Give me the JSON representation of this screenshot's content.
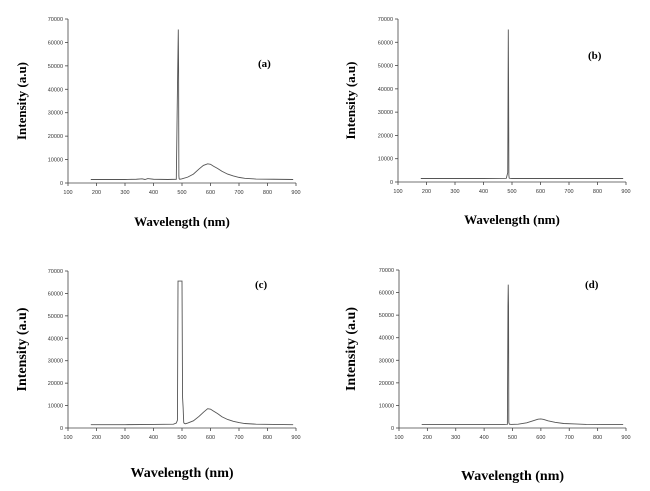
{
  "chart_data": [
    {
      "type": "line",
      "panel_label": "(a)",
      "xlabel": "Wavelength (nm)",
      "ylabel": "Intensity (a.u)",
      "xlim": [
        100,
        900
      ],
      "ylim": [
        0,
        70000
      ],
      "xticks": [
        "100",
        "200",
        "300",
        "400",
        "500",
        "600",
        "700",
        "800",
        "900"
      ],
      "yticks": [
        "0",
        "10000",
        "20000",
        "30000",
        "40000",
        "50000",
        "60000",
        "70000"
      ],
      "grid": false,
      "series": [
        {
          "x": [
            180,
            300,
            340,
            360,
            370,
            380,
            400,
            450,
            480,
            485,
            487,
            488,
            489,
            490,
            492,
            496,
            500,
            520,
            540,
            560,
            575,
            590,
            600,
            610,
            625,
            640,
            660,
            680,
            700,
            720,
            760,
            820,
            890
          ],
          "values": [
            1500,
            1500,
            1600,
            1800,
            1500,
            1900,
            1600,
            1500,
            1600,
            49000,
            65500,
            49000,
            3000,
            1800,
            1600,
            1700,
            1800,
            2500,
            3800,
            6000,
            7500,
            8200,
            8000,
            7200,
            6200,
            5000,
            3800,
            3000,
            2400,
            2000,
            1700,
            1600,
            1500
          ]
        }
      ]
    },
    {
      "type": "line",
      "panel_label": "(b)",
      "xlabel": "Wavelength (nm)",
      "ylabel": "Intensity (a.u)",
      "xlim": [
        100,
        900
      ],
      "ylim": [
        0,
        70000
      ],
      "xticks": [
        "100",
        "200",
        "300",
        "400",
        "500",
        "600",
        "700",
        "800",
        "900"
      ],
      "yticks": [
        "0",
        "10000",
        "20000",
        "30000",
        "40000",
        "50000",
        "60000",
        "70000"
      ],
      "grid": false,
      "series": [
        {
          "x": [
            180,
            300,
            400,
            480,
            485,
            487,
            488,
            489,
            490,
            492,
            500,
            600,
            700,
            800,
            890
          ],
          "values": [
            1500,
            1500,
            1500,
            1600,
            4000,
            65500,
            40000,
            3000,
            1700,
            1600,
            1500,
            1500,
            1500,
            1500,
            1500
          ]
        }
      ]
    },
    {
      "type": "line",
      "panel_label": "(c)",
      "xlabel": "Wavelength (nm)",
      "ylabel": "Intensity (a.u)",
      "xlim": [
        100,
        900
      ],
      "ylim": [
        0,
        70000
      ],
      "xticks": [
        "100",
        "200",
        "300",
        "400",
        "500",
        "600",
        "700",
        "800",
        "900"
      ],
      "yticks": [
        "0",
        "10000",
        "20000",
        "30000",
        "40000",
        "50000",
        "60000",
        "70000"
      ],
      "grid": false,
      "series": [
        {
          "x": [
            180,
            300,
            400,
            470,
            480,
            484,
            486,
            500,
            502,
            504,
            506,
            508,
            512,
            520,
            540,
            560,
            575,
            590,
            600,
            610,
            625,
            640,
            660,
            680,
            700,
            720,
            760,
            820,
            890
          ],
          "values": [
            1500,
            1500,
            1600,
            1700,
            2200,
            3500,
            65500,
            65500,
            13500,
            9000,
            2500,
            2000,
            1900,
            2200,
            3200,
            5200,
            7000,
            8600,
            8400,
            7600,
            6400,
            5000,
            3800,
            3000,
            2400,
            2000,
            1700,
            1600,
            1500
          ]
        }
      ]
    },
    {
      "type": "line",
      "panel_label": "(d)",
      "xlabel": "Wavelength (nm)",
      "ylabel": "Intensity (a.u)",
      "xlim": [
        100,
        900
      ],
      "ylim": [
        0,
        70000
      ],
      "xticks": [
        "100",
        "200",
        "300",
        "400",
        "500",
        "600",
        "700",
        "800",
        "900"
      ],
      "yticks": [
        "0",
        "10000",
        "20000",
        "30000",
        "40000",
        "50000",
        "60000",
        "70000"
      ],
      "grid": false,
      "series": [
        {
          "x": [
            180,
            300,
            400,
            470,
            482,
            484,
            485,
            486,
            487,
            489,
            495,
            520,
            550,
            575,
            590,
            600,
            610,
            625,
            650,
            680,
            720,
            760,
            820,
            890
          ],
          "values": [
            1500,
            1500,
            1500,
            1500,
            1600,
            54000,
            63500,
            54000,
            2500,
            1700,
            1600,
            1700,
            2300,
            3300,
            3900,
            4000,
            3800,
            3200,
            2500,
            2000,
            1800,
            1600,
            1500,
            1500
          ]
        }
      ]
    }
  ]
}
